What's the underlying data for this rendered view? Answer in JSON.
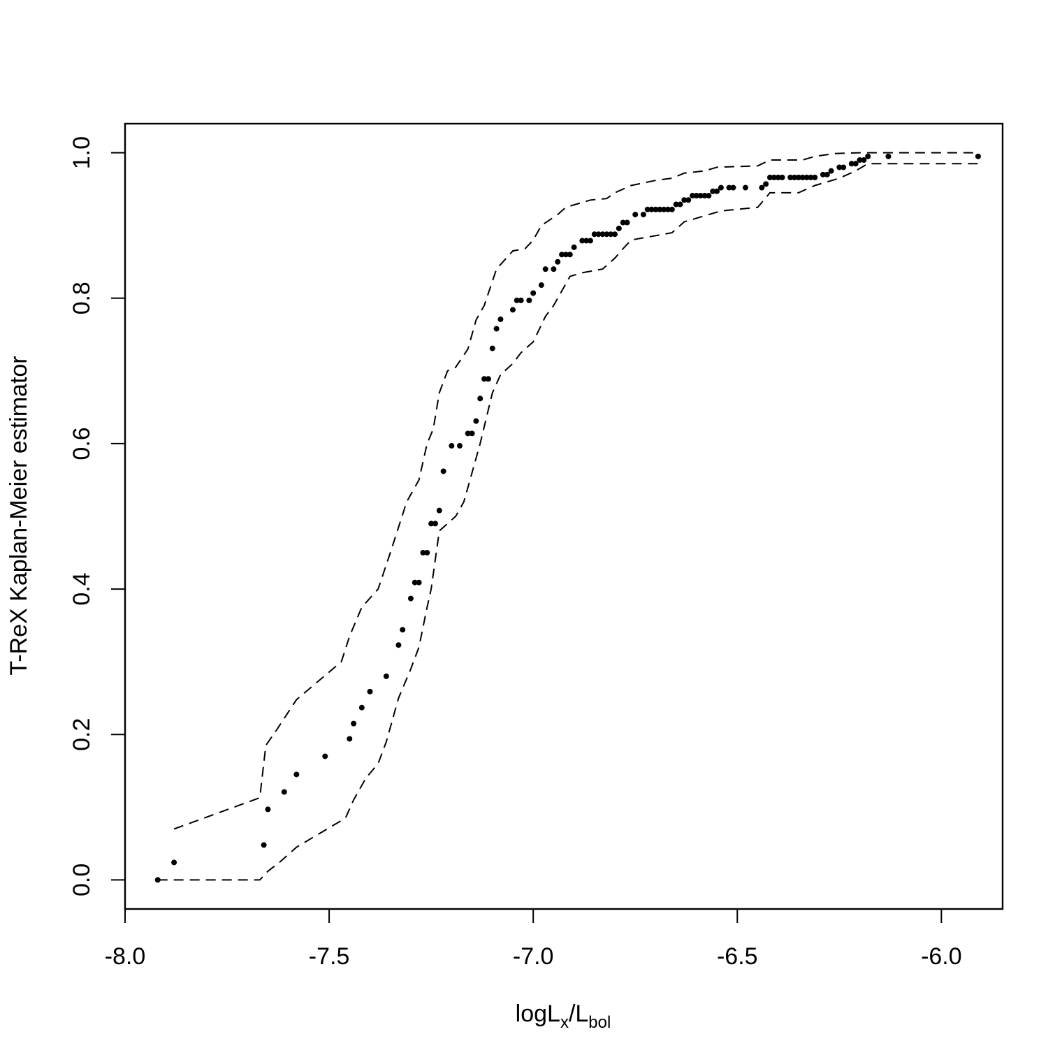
{
  "chart_data": {
    "type": "scatter",
    "title": "",
    "xlabel": {
      "main": "logL",
      "sub1": "x",
      "sep": "/L",
      "sub2": "bol"
    },
    "ylabel": "T-ReX Kaplan-Meier estimator",
    "xlim": [
      -8.0,
      -5.85
    ],
    "ylim": [
      -0.04,
      1.04
    ],
    "x_ticks": [
      {
        "value": -8.0,
        "label": "-8.0"
      },
      {
        "value": -7.5,
        "label": "-7.5"
      },
      {
        "value": -7.0,
        "label": "-7.0"
      },
      {
        "value": -6.5,
        "label": "-6.5"
      },
      {
        "value": -6.0,
        "label": "-6.0"
      }
    ],
    "y_ticks": [
      {
        "value": 0.0,
        "label": "0.0"
      },
      {
        "value": 0.2,
        "label": "0.2"
      },
      {
        "value": 0.4,
        "label": "0.4"
      },
      {
        "value": 0.6,
        "label": "0.6"
      },
      {
        "value": 0.8,
        "label": "0.8"
      },
      {
        "value": 1.0,
        "label": "1.0"
      }
    ],
    "grid": false,
    "legend": "none",
    "series": [
      {
        "style": "points",
        "color": "#000000",
        "points": [
          [
            -7.92,
            0.0
          ],
          [
            -7.88,
            0.024
          ],
          [
            -7.66,
            0.048
          ],
          [
            -7.65,
            0.097
          ],
          [
            -7.61,
            0.121
          ],
          [
            -7.58,
            0.145
          ],
          [
            -7.51,
            0.17
          ],
          [
            -7.45,
            0.194
          ],
          [
            -7.44,
            0.215
          ],
          [
            -7.42,
            0.237
          ],
          [
            -7.4,
            0.259
          ],
          [
            -7.36,
            0.28
          ],
          [
            -7.33,
            0.323
          ],
          [
            -7.32,
            0.344
          ],
          [
            -7.3,
            0.387
          ],
          [
            -7.29,
            0.409
          ],
          [
            -7.28,
            0.409
          ],
          [
            -7.27,
            0.45
          ],
          [
            -7.26,
            0.45
          ],
          [
            -7.25,
            0.49
          ],
          [
            -7.24,
            0.49
          ],
          [
            -7.23,
            0.508
          ],
          [
            -7.22,
            0.562
          ],
          [
            -7.2,
            0.597
          ],
          [
            -7.18,
            0.597
          ],
          [
            -7.16,
            0.614
          ],
          [
            -7.15,
            0.614
          ],
          [
            -7.14,
            0.631
          ],
          [
            -7.13,
            0.662
          ],
          [
            -7.12,
            0.689
          ],
          [
            -7.11,
            0.689
          ],
          [
            -7.1,
            0.731
          ],
          [
            -7.09,
            0.758
          ],
          [
            -7.08,
            0.771
          ],
          [
            -7.05,
            0.784
          ],
          [
            -7.04,
            0.797
          ],
          [
            -7.03,
            0.797
          ],
          [
            -7.01,
            0.797
          ],
          [
            -7.0,
            0.807
          ],
          [
            -6.98,
            0.818
          ],
          [
            -6.97,
            0.84
          ],
          [
            -6.95,
            0.84
          ],
          [
            -6.94,
            0.85
          ],
          [
            -6.93,
            0.86
          ],
          [
            -6.92,
            0.86
          ],
          [
            -6.91,
            0.86
          ],
          [
            -6.9,
            0.87
          ],
          [
            -6.88,
            0.879
          ],
          [
            -6.87,
            0.879
          ],
          [
            -6.86,
            0.879
          ],
          [
            -6.85,
            0.888
          ],
          [
            -6.84,
            0.888
          ],
          [
            -6.83,
            0.888
          ],
          [
            -6.82,
            0.888
          ],
          [
            -6.81,
            0.888
          ],
          [
            -6.8,
            0.888
          ],
          [
            -6.79,
            0.896
          ],
          [
            -6.78,
            0.904
          ],
          [
            -6.77,
            0.904
          ],
          [
            -6.75,
            0.915
          ],
          [
            -6.73,
            0.915
          ],
          [
            -6.72,
            0.922
          ],
          [
            -6.71,
            0.922
          ],
          [
            -6.7,
            0.922
          ],
          [
            -6.69,
            0.922
          ],
          [
            -6.68,
            0.922
          ],
          [
            -6.67,
            0.922
          ],
          [
            -6.66,
            0.922
          ],
          [
            -6.65,
            0.929
          ],
          [
            -6.64,
            0.929
          ],
          [
            -6.63,
            0.935
          ],
          [
            -6.62,
            0.935
          ],
          [
            -6.61,
            0.941
          ],
          [
            -6.6,
            0.941
          ],
          [
            -6.59,
            0.941
          ],
          [
            -6.58,
            0.941
          ],
          [
            -6.57,
            0.941
          ],
          [
            -6.56,
            0.947
          ],
          [
            -6.55,
            0.947
          ],
          [
            -6.54,
            0.952
          ],
          [
            -6.52,
            0.952
          ],
          [
            -6.51,
            0.952
          ],
          [
            -6.48,
            0.952
          ],
          [
            -6.44,
            0.952
          ],
          [
            -6.43,
            0.957
          ],
          [
            -6.42,
            0.966
          ],
          [
            -6.41,
            0.966
          ],
          [
            -6.4,
            0.966
          ],
          [
            -6.39,
            0.966
          ],
          [
            -6.37,
            0.966
          ],
          [
            -6.36,
            0.966
          ],
          [
            -6.35,
            0.966
          ],
          [
            -6.34,
            0.966
          ],
          [
            -6.33,
            0.966
          ],
          [
            -6.32,
            0.966
          ],
          [
            -6.31,
            0.966
          ],
          [
            -6.29,
            0.97
          ],
          [
            -6.28,
            0.97
          ],
          [
            -6.27,
            0.975
          ],
          [
            -6.25,
            0.98
          ],
          [
            -6.24,
            0.98
          ],
          [
            -6.22,
            0.985
          ],
          [
            -6.21,
            0.985
          ],
          [
            -6.2,
            0.99
          ],
          [
            -6.19,
            0.99
          ],
          [
            -6.18,
            0.995
          ],
          [
            -6.13,
            0.995
          ],
          [
            -5.91,
            0.995
          ]
        ]
      },
      {
        "style": "dashed",
        "color": "#000000",
        "points": [
          [
            -7.88,
            0.07
          ],
          [
            -7.67,
            0.113
          ],
          [
            -7.655,
            0.185
          ],
          [
            -7.63,
            0.205
          ],
          [
            -7.58,
            0.248
          ],
          [
            -7.47,
            0.3
          ],
          [
            -7.45,
            0.335
          ],
          [
            -7.42,
            0.375
          ],
          [
            -7.38,
            0.4
          ],
          [
            -7.35,
            0.45
          ],
          [
            -7.31,
            0.52
          ],
          [
            -7.28,
            0.55
          ],
          [
            -7.26,
            0.6
          ],
          [
            -7.245,
            0.62
          ],
          [
            -7.23,
            0.67
          ],
          [
            -7.21,
            0.7
          ],
          [
            -7.19,
            0.705
          ],
          [
            -7.16,
            0.73
          ],
          [
            -7.14,
            0.77
          ],
          [
            -7.12,
            0.79
          ],
          [
            -7.09,
            0.84
          ],
          [
            -7.05,
            0.865
          ],
          [
            -7.02,
            0.868
          ],
          [
            -7.0,
            0.88
          ],
          [
            -6.98,
            0.9
          ],
          [
            -6.94,
            0.915
          ],
          [
            -6.92,
            0.925
          ],
          [
            -6.89,
            0.93
          ],
          [
            -6.86,
            0.935
          ],
          [
            -6.82,
            0.937
          ],
          [
            -6.8,
            0.945
          ],
          [
            -6.76,
            0.955
          ],
          [
            -6.7,
            0.962
          ],
          [
            -6.66,
            0.965
          ],
          [
            -6.63,
            0.972
          ],
          [
            -6.58,
            0.975
          ],
          [
            -6.55,
            0.98
          ],
          [
            -6.45,
            0.982
          ],
          [
            -6.42,
            0.99
          ],
          [
            -6.34,
            0.99
          ],
          [
            -6.31,
            0.995
          ],
          [
            -6.26,
            0.999
          ],
          [
            -6.2,
            1.0
          ],
          [
            -5.91,
            1.0
          ]
        ]
      },
      {
        "style": "dashed",
        "color": "#000000",
        "points": [
          [
            -7.92,
            0.0
          ],
          [
            -7.67,
            0.0
          ],
          [
            -7.65,
            0.012
          ],
          [
            -7.62,
            0.025
          ],
          [
            -7.58,
            0.045
          ],
          [
            -7.46,
            0.085
          ],
          [
            -7.44,
            0.11
          ],
          [
            -7.41,
            0.14
          ],
          [
            -7.38,
            0.16
          ],
          [
            -7.36,
            0.19
          ],
          [
            -7.33,
            0.25
          ],
          [
            -7.3,
            0.29
          ],
          [
            -7.28,
            0.32
          ],
          [
            -7.26,
            0.375
          ],
          [
            -7.25,
            0.4
          ],
          [
            -7.23,
            0.48
          ],
          [
            -7.21,
            0.49
          ],
          [
            -7.19,
            0.5
          ],
          [
            -7.17,
            0.52
          ],
          [
            -7.15,
            0.56
          ],
          [
            -7.13,
            0.6
          ],
          [
            -7.1,
            0.67
          ],
          [
            -7.08,
            0.695
          ],
          [
            -7.05,
            0.71
          ],
          [
            -7.03,
            0.725
          ],
          [
            -7.0,
            0.74
          ],
          [
            -6.97,
            0.775
          ],
          [
            -6.95,
            0.79
          ],
          [
            -6.93,
            0.81
          ],
          [
            -6.91,
            0.83
          ],
          [
            -6.88,
            0.835
          ],
          [
            -6.83,
            0.84
          ],
          [
            -6.8,
            0.855
          ],
          [
            -6.78,
            0.868
          ],
          [
            -6.76,
            0.88
          ],
          [
            -6.73,
            0.883
          ],
          [
            -6.66,
            0.89
          ],
          [
            -6.63,
            0.905
          ],
          [
            -6.6,
            0.91
          ],
          [
            -6.57,
            0.915
          ],
          [
            -6.54,
            0.92
          ],
          [
            -6.45,
            0.925
          ],
          [
            -6.42,
            0.945
          ],
          [
            -6.35,
            0.945
          ],
          [
            -6.31,
            0.955
          ],
          [
            -6.28,
            0.96
          ],
          [
            -6.25,
            0.965
          ],
          [
            -6.21,
            0.975
          ],
          [
            -6.18,
            0.985
          ],
          [
            -5.91,
            0.985
          ]
        ]
      }
    ]
  }
}
